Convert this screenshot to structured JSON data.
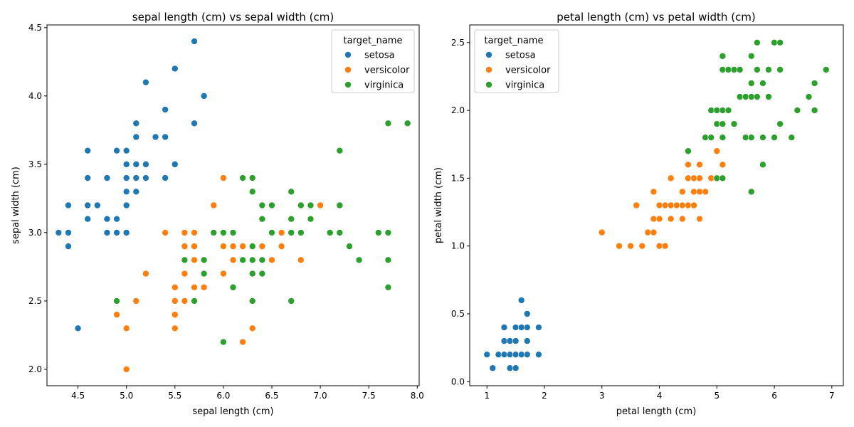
{
  "chart_data": [
    {
      "type": "scatter",
      "title": "sepal length (cm) vs sepal width (cm)",
      "xlabel": "sepal length (cm)",
      "ylabel": "sepal width (cm)",
      "xlim": [
        4.18,
        8.02
      ],
      "ylim": [
        1.88,
        4.52
      ],
      "xticks": [
        "4.5",
        "5.0",
        "5.5",
        "6.0",
        "6.5",
        "7.0",
        "7.5",
        "8.0"
      ],
      "yticks": [
        "2.0",
        "2.5",
        "3.0",
        "3.5",
        "4.0",
        "4.5"
      ],
      "legend": {
        "title": "target_name",
        "placement": "top-right"
      },
      "series": [
        {
          "name": "setosa",
          "color": "#1f77b4",
          "points": [
            [
              4.3,
              3.0
            ],
            [
              4.4,
              3.0
            ],
            [
              4.4,
              3.2
            ],
            [
              4.4,
              2.9
            ],
            [
              4.5,
              2.3
            ],
            [
              4.6,
              3.6
            ],
            [
              4.6,
              3.4
            ],
            [
              4.6,
              3.2
            ],
            [
              4.6,
              3.1
            ],
            [
              4.7,
              3.2
            ],
            [
              4.8,
              3.4
            ],
            [
              4.8,
              3.1
            ],
            [
              4.8,
              3.0
            ],
            [
              4.9,
              3.6
            ],
            [
              4.9,
              3.1
            ],
            [
              4.9,
              3.0
            ],
            [
              5.0,
              3.6
            ],
            [
              5.0,
              3.5
            ],
            [
              5.0,
              3.4
            ],
            [
              5.0,
              3.3
            ],
            [
              5.0,
              3.2
            ],
            [
              5.0,
              3.0
            ],
            [
              5.1,
              3.8
            ],
            [
              5.1,
              3.7
            ],
            [
              5.1,
              3.5
            ],
            [
              5.1,
              3.4
            ],
            [
              5.1,
              3.3
            ],
            [
              5.2,
              4.1
            ],
            [
              5.2,
              3.5
            ],
            [
              5.2,
              3.4
            ],
            [
              5.3,
              3.7
            ],
            [
              5.4,
              3.9
            ],
            [
              5.4,
              3.7
            ],
            [
              5.4,
              3.4
            ],
            [
              5.5,
              4.2
            ],
            [
              5.5,
              3.5
            ],
            [
              5.7,
              4.4
            ],
            [
              5.7,
              3.8
            ],
            [
              5.8,
              4.0
            ]
          ]
        },
        {
          "name": "versicolor",
          "color": "#ff7f0e",
          "points": [
            [
              4.9,
              2.4
            ],
            [
              5.0,
              2.3
            ],
            [
              5.0,
              2.0
            ],
            [
              5.1,
              2.5
            ],
            [
              5.2,
              2.7
            ],
            [
              5.4,
              3.0
            ],
            [
              5.5,
              2.6
            ],
            [
              5.5,
              2.5
            ],
            [
              5.5,
              2.4
            ],
            [
              5.5,
              2.3
            ],
            [
              5.6,
              3.0
            ],
            [
              5.6,
              2.9
            ],
            [
              5.6,
              2.7
            ],
            [
              5.6,
              2.5
            ],
            [
              5.7,
              3.0
            ],
            [
              5.7,
              2.9
            ],
            [
              5.7,
              2.8
            ],
            [
              5.7,
              2.6
            ],
            [
              5.8,
              2.7
            ],
            [
              5.8,
              2.6
            ],
            [
              5.9,
              3.2
            ],
            [
              5.9,
              3.0
            ],
            [
              6.0,
              3.4
            ],
            [
              6.0,
              2.9
            ],
            [
              6.0,
              2.7
            ],
            [
              6.0,
              2.2
            ],
            [
              6.1,
              3.0
            ],
            [
              6.1,
              2.9
            ],
            [
              6.1,
              2.8
            ],
            [
              6.2,
              2.9
            ],
            [
              6.2,
              2.2
            ],
            [
              6.3,
              3.3
            ],
            [
              6.3,
              2.5
            ],
            [
              6.3,
              2.3
            ],
            [
              6.4,
              3.2
            ],
            [
              6.4,
              2.9
            ],
            [
              6.5,
              2.8
            ],
            [
              6.6,
              3.0
            ],
            [
              6.6,
              2.9
            ],
            [
              6.7,
              3.1
            ],
            [
              6.7,
              3.0
            ],
            [
              6.8,
              2.8
            ],
            [
              6.9,
              3.1
            ],
            [
              7.0,
              3.2
            ]
          ]
        },
        {
          "name": "virginica",
          "color": "#2ca02c",
          "points": [
            [
              4.9,
              2.5
            ],
            [
              5.6,
              2.8
            ],
            [
              5.7,
              2.5
            ],
            [
              5.8,
              2.8
            ],
            [
              5.8,
              2.7
            ],
            [
              5.9,
              3.0
            ],
            [
              6.0,
              3.0
            ],
            [
              6.0,
              2.2
            ],
            [
              6.1,
              3.0
            ],
            [
              6.1,
              2.6
            ],
            [
              6.2,
              3.4
            ],
            [
              6.2,
              2.8
            ],
            [
              6.3,
              3.4
            ],
            [
              6.3,
              3.3
            ],
            [
              6.3,
              2.9
            ],
            [
              6.3,
              2.8
            ],
            [
              6.3,
              2.7
            ],
            [
              6.3,
              2.5
            ],
            [
              6.4,
              3.2
            ],
            [
              6.4,
              3.1
            ],
            [
              6.4,
              2.8
            ],
            [
              6.4,
              2.7
            ],
            [
              6.5,
              3.2
            ],
            [
              6.5,
              3.0
            ],
            [
              6.7,
              3.3
            ],
            [
              6.7,
              3.1
            ],
            [
              6.7,
              3.0
            ],
            [
              6.7,
              2.5
            ],
            [
              6.8,
              3.2
            ],
            [
              6.8,
              3.0
            ],
            [
              6.9,
              3.2
            ],
            [
              6.9,
              3.1
            ],
            [
              7.1,
              3.0
            ],
            [
              7.2,
              3.6
            ],
            [
              7.2,
              3.2
            ],
            [
              7.2,
              3.0
            ],
            [
              7.3,
              2.9
            ],
            [
              7.4,
              2.8
            ],
            [
              7.6,
              3.0
            ],
            [
              7.7,
              3.8
            ],
            [
              7.7,
              3.0
            ],
            [
              7.7,
              2.8
            ],
            [
              7.7,
              2.6
            ],
            [
              7.9,
              3.8
            ]
          ]
        }
      ]
    },
    {
      "type": "scatter",
      "title": "petal length (cm) vs petal width (cm)",
      "xlabel": "petal length (cm)",
      "ylabel": "petal width (cm)",
      "xlim": [
        0.7,
        7.2
      ],
      "ylim": [
        -0.03,
        2.63
      ],
      "xticks": [
        "1",
        "2",
        "3",
        "4",
        "5",
        "6",
        "7"
      ],
      "yticks": [
        "0.0",
        "0.5",
        "1.0",
        "1.5",
        "2.0",
        "2.5"
      ],
      "legend": {
        "title": "target_name",
        "placement": "top-left"
      },
      "series": [
        {
          "name": "setosa",
          "color": "#1f77b4",
          "points": [
            [
              1.0,
              0.2
            ],
            [
              1.1,
              0.1
            ],
            [
              1.2,
              0.2
            ],
            [
              1.3,
              0.4
            ],
            [
              1.3,
              0.3
            ],
            [
              1.3,
              0.2
            ],
            [
              1.4,
              0.3
            ],
            [
              1.4,
              0.2
            ],
            [
              1.4,
              0.1
            ],
            [
              1.5,
              0.4
            ],
            [
              1.5,
              0.3
            ],
            [
              1.5,
              0.2
            ],
            [
              1.5,
              0.1
            ],
            [
              1.6,
              0.6
            ],
            [
              1.6,
              0.4
            ],
            [
              1.6,
              0.2
            ],
            [
              1.7,
              0.5
            ],
            [
              1.7,
              0.4
            ],
            [
              1.7,
              0.3
            ],
            [
              1.7,
              0.2
            ],
            [
              1.9,
              0.4
            ],
            [
              1.9,
              0.2
            ]
          ]
        },
        {
          "name": "versicolor",
          "color": "#ff7f0e",
          "points": [
            [
              3.0,
              1.1
            ],
            [
              3.3,
              1.0
            ],
            [
              3.5,
              1.0
            ],
            [
              3.6,
              1.3
            ],
            [
              3.7,
              1.0
            ],
            [
              3.8,
              1.1
            ],
            [
              3.9,
              1.4
            ],
            [
              3.9,
              1.2
            ],
            [
              3.9,
              1.1
            ],
            [
              4.0,
              1.3
            ],
            [
              4.0,
              1.2
            ],
            [
              4.0,
              1.0
            ],
            [
              4.1,
              1.3
            ],
            [
              4.1,
              1.0
            ],
            [
              4.2,
              1.5
            ],
            [
              4.2,
              1.3
            ],
            [
              4.2,
              1.2
            ],
            [
              4.3,
              1.3
            ],
            [
              4.4,
              1.4
            ],
            [
              4.4,
              1.3
            ],
            [
              4.4,
              1.2
            ],
            [
              4.5,
              1.6
            ],
            [
              4.5,
              1.5
            ],
            [
              4.5,
              1.3
            ],
            [
              4.6,
              1.5
            ],
            [
              4.6,
              1.4
            ],
            [
              4.6,
              1.3
            ],
            [
              4.7,
              1.6
            ],
            [
              4.7,
              1.5
            ],
            [
              4.7,
              1.4
            ],
            [
              4.7,
              1.2
            ],
            [
              4.8,
              1.4
            ],
            [
              4.9,
              1.5
            ],
            [
              5.0,
              1.7
            ],
            [
              5.1,
              1.6
            ]
          ]
        },
        {
          "name": "virginica",
          "color": "#2ca02c",
          "points": [
            [
              4.5,
              1.7
            ],
            [
              4.8,
              1.8
            ],
            [
              4.9,
              2.0
            ],
            [
              4.9,
              1.8
            ],
            [
              5.0,
              2.0
            ],
            [
              5.0,
              1.9
            ],
            [
              5.0,
              1.5
            ],
            [
              5.1,
              2.4
            ],
            [
              5.1,
              2.3
            ],
            [
              5.1,
              2.0
            ],
            [
              5.1,
              1.9
            ],
            [
              5.1,
              1.8
            ],
            [
              5.1,
              1.5
            ],
            [
              5.2,
              2.3
            ],
            [
              5.2,
              2.0
            ],
            [
              5.3,
              2.3
            ],
            [
              5.3,
              1.9
            ],
            [
              5.4,
              2.3
            ],
            [
              5.4,
              2.1
            ],
            [
              5.5,
              2.1
            ],
            [
              5.5,
              1.8
            ],
            [
              5.6,
              2.4
            ],
            [
              5.6,
              2.2
            ],
            [
              5.6,
              2.1
            ],
            [
              5.6,
              1.8
            ],
            [
              5.6,
              1.4
            ],
            [
              5.7,
              2.5
            ],
            [
              5.7,
              2.3
            ],
            [
              5.7,
              2.1
            ],
            [
              5.8,
              2.2
            ],
            [
              5.8,
              1.8
            ],
            [
              5.8,
              1.6
            ],
            [
              5.9,
              2.3
            ],
            [
              5.9,
              2.1
            ],
            [
              6.0,
              2.5
            ],
            [
              6.0,
              1.8
            ],
            [
              6.1,
              2.5
            ],
            [
              6.1,
              2.3
            ],
            [
              6.1,
              1.9
            ],
            [
              6.3,
              1.8
            ],
            [
              6.4,
              2.0
            ],
            [
              6.6,
              2.1
            ],
            [
              6.7,
              2.2
            ],
            [
              6.7,
              2.0
            ],
            [
              6.9,
              2.3
            ]
          ]
        }
      ]
    }
  ]
}
